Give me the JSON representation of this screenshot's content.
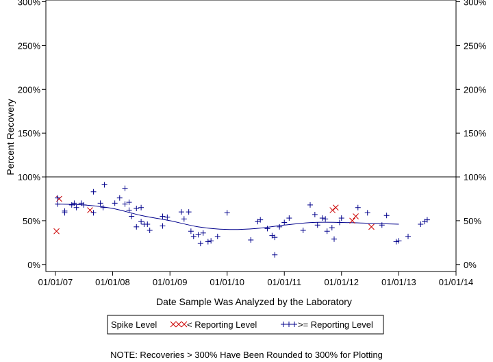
{
  "chart_data": {
    "type": "scatter",
    "xlabel": "Date Sample Was Analyzed by the Laboratory",
    "ylabel": "Percent Recovery",
    "x_ticks": [
      "01/01/07",
      "01/01/08",
      "01/01/09",
      "01/01/10",
      "01/01/11",
      "01/01/12",
      "01/01/13",
      "01/01/14"
    ],
    "y_ticks": [
      "0%",
      "50%",
      "100%",
      "150%",
      "200%",
      "250%",
      "300%"
    ],
    "xlim": [
      "2006-11-01",
      "2014-01-01"
    ],
    "ylim": [
      -8,
      302
    ],
    "grid": false,
    "reference_line": 100,
    "legend": {
      "title": "Spike Level",
      "entries": [
        {
          "symbol": "xxx",
          "label": "< Reporting Level",
          "color": "#cc0000"
        },
        {
          "symbol": "+++",
          "label": ">= Reporting Level",
          "color": "#00008b"
        }
      ],
      "placement": "bottom"
    },
    "note": "NOTE: Recoveries > 300% Have Been Rounded to 300% for Plotting",
    "series": [
      {
        "name": "< Reporting Level",
        "marker": "x",
        "color": "#cc0000",
        "points": [
          {
            "x": "2007-01-08",
            "y": 38
          },
          {
            "x": "2007-01-25",
            "y": 75
          },
          {
            "x": "2007-08-10",
            "y": 62
          },
          {
            "x": "2011-11-05",
            "y": 62
          },
          {
            "x": "2011-11-25",
            "y": 65
          },
          {
            "x": "2012-03-10",
            "y": 50
          },
          {
            "x": "2012-04-01",
            "y": 55
          },
          {
            "x": "2012-07-10",
            "y": 43
          }
        ]
      },
      {
        "name": ">= Reporting Level",
        "marker": "+",
        "color": "#00008b",
        "points": [
          {
            "x": "2007-01-15",
            "y": 76
          },
          {
            "x": "2007-01-15",
            "y": 69
          },
          {
            "x": "2007-03-01",
            "y": 61
          },
          {
            "x": "2007-03-01",
            "y": 59
          },
          {
            "x": "2007-04-15",
            "y": 68
          },
          {
            "x": "2007-05-01",
            "y": 70
          },
          {
            "x": "2007-05-15",
            "y": 65
          },
          {
            "x": "2007-06-15",
            "y": 70
          },
          {
            "x": "2007-07-01",
            "y": 68
          },
          {
            "x": "2007-09-01",
            "y": 83
          },
          {
            "x": "2007-09-01",
            "y": 59
          },
          {
            "x": "2007-10-15",
            "y": 70
          },
          {
            "x": "2007-11-01",
            "y": 65
          },
          {
            "x": "2007-11-10",
            "y": 91
          },
          {
            "x": "2008-01-15",
            "y": 70
          },
          {
            "x": "2008-02-15",
            "y": 76
          },
          {
            "x": "2008-03-20",
            "y": 87
          },
          {
            "x": "2008-03-20",
            "y": 69
          },
          {
            "x": "2008-04-15",
            "y": 71
          },
          {
            "x": "2008-04-15",
            "y": 62
          },
          {
            "x": "2008-05-01",
            "y": 55
          },
          {
            "x": "2008-06-01",
            "y": 64
          },
          {
            "x": "2008-06-01",
            "y": 43
          },
          {
            "x": "2008-07-01",
            "y": 65
          },
          {
            "x": "2008-07-01",
            "y": 49
          },
          {
            "x": "2008-07-20",
            "y": 46
          },
          {
            "x": "2008-08-10",
            "y": 46
          },
          {
            "x": "2008-08-25",
            "y": 39
          },
          {
            "x": "2008-11-15",
            "y": 55
          },
          {
            "x": "2008-11-15",
            "y": 44
          },
          {
            "x": "2008-12-15",
            "y": 54
          },
          {
            "x": "2009-03-15",
            "y": 60
          },
          {
            "x": "2009-04-01",
            "y": 52
          },
          {
            "x": "2009-05-01",
            "y": 60
          },
          {
            "x": "2009-05-15",
            "y": 38
          },
          {
            "x": "2009-06-01",
            "y": 32
          },
          {
            "x": "2009-07-01",
            "y": 34
          },
          {
            "x": "2009-07-15",
            "y": 24
          },
          {
            "x": "2009-08-01",
            "y": 36
          },
          {
            "x": "2009-09-01",
            "y": 26
          },
          {
            "x": "2009-09-20",
            "y": 27
          },
          {
            "x": "2009-11-01",
            "y": 32
          },
          {
            "x": "2010-01-01",
            "y": 59
          },
          {
            "x": "2010-06-01",
            "y": 28
          },
          {
            "x": "2010-07-15",
            "y": 49
          },
          {
            "x": "2010-08-01",
            "y": 51
          },
          {
            "x": "2010-09-15",
            "y": 41
          },
          {
            "x": "2010-10-15",
            "y": 33
          },
          {
            "x": "2010-11-01",
            "y": 31
          },
          {
            "x": "2010-11-01",
            "y": 11
          },
          {
            "x": "2010-12-01",
            "y": 43
          },
          {
            "x": "2011-01-01",
            "y": 48
          },
          {
            "x": "2011-02-01",
            "y": 53
          },
          {
            "x": "2011-05-01",
            "y": 39
          },
          {
            "x": "2011-06-15",
            "y": 68
          },
          {
            "x": "2011-07-15",
            "y": 57
          },
          {
            "x": "2011-08-01",
            "y": 45
          },
          {
            "x": "2011-09-01",
            "y": 53
          },
          {
            "x": "2011-09-20",
            "y": 52
          },
          {
            "x": "2011-10-01",
            "y": 38
          },
          {
            "x": "2011-11-01",
            "y": 42
          },
          {
            "x": "2011-11-15",
            "y": 29
          },
          {
            "x": "2011-12-20",
            "y": 48
          },
          {
            "x": "2012-01-01",
            "y": 53
          },
          {
            "x": "2012-04-15",
            "y": 65
          },
          {
            "x": "2012-06-15",
            "y": 59
          },
          {
            "x": "2012-09-15",
            "y": 45
          },
          {
            "x": "2012-10-15",
            "y": 56
          },
          {
            "x": "2012-12-15",
            "y": 26
          },
          {
            "x": "2013-01-01",
            "y": 27
          },
          {
            "x": "2013-03-01",
            "y": 32
          },
          {
            "x": "2013-05-20",
            "y": 46
          },
          {
            "x": "2013-06-15",
            "y": 49
          },
          {
            "x": "2013-07-01",
            "y": 51
          }
        ]
      }
    ],
    "trend_line": {
      "color": "#00008b",
      "points": [
        {
          "x": "2007-01-01",
          "y": 69
        },
        {
          "x": "2007-07-01",
          "y": 68
        },
        {
          "x": "2008-01-01",
          "y": 64
        },
        {
          "x": "2008-07-01",
          "y": 56
        },
        {
          "x": "2009-01-01",
          "y": 50
        },
        {
          "x": "2009-07-01",
          "y": 43
        },
        {
          "x": "2010-01-01",
          "y": 40
        },
        {
          "x": "2010-07-01",
          "y": 41
        },
        {
          "x": "2011-01-01",
          "y": 45
        },
        {
          "x": "2011-07-01",
          "y": 48
        },
        {
          "x": "2012-01-01",
          "y": 48
        },
        {
          "x": "2012-07-01",
          "y": 47
        },
        {
          "x": "2013-01-01",
          "y": 46
        }
      ]
    }
  }
}
